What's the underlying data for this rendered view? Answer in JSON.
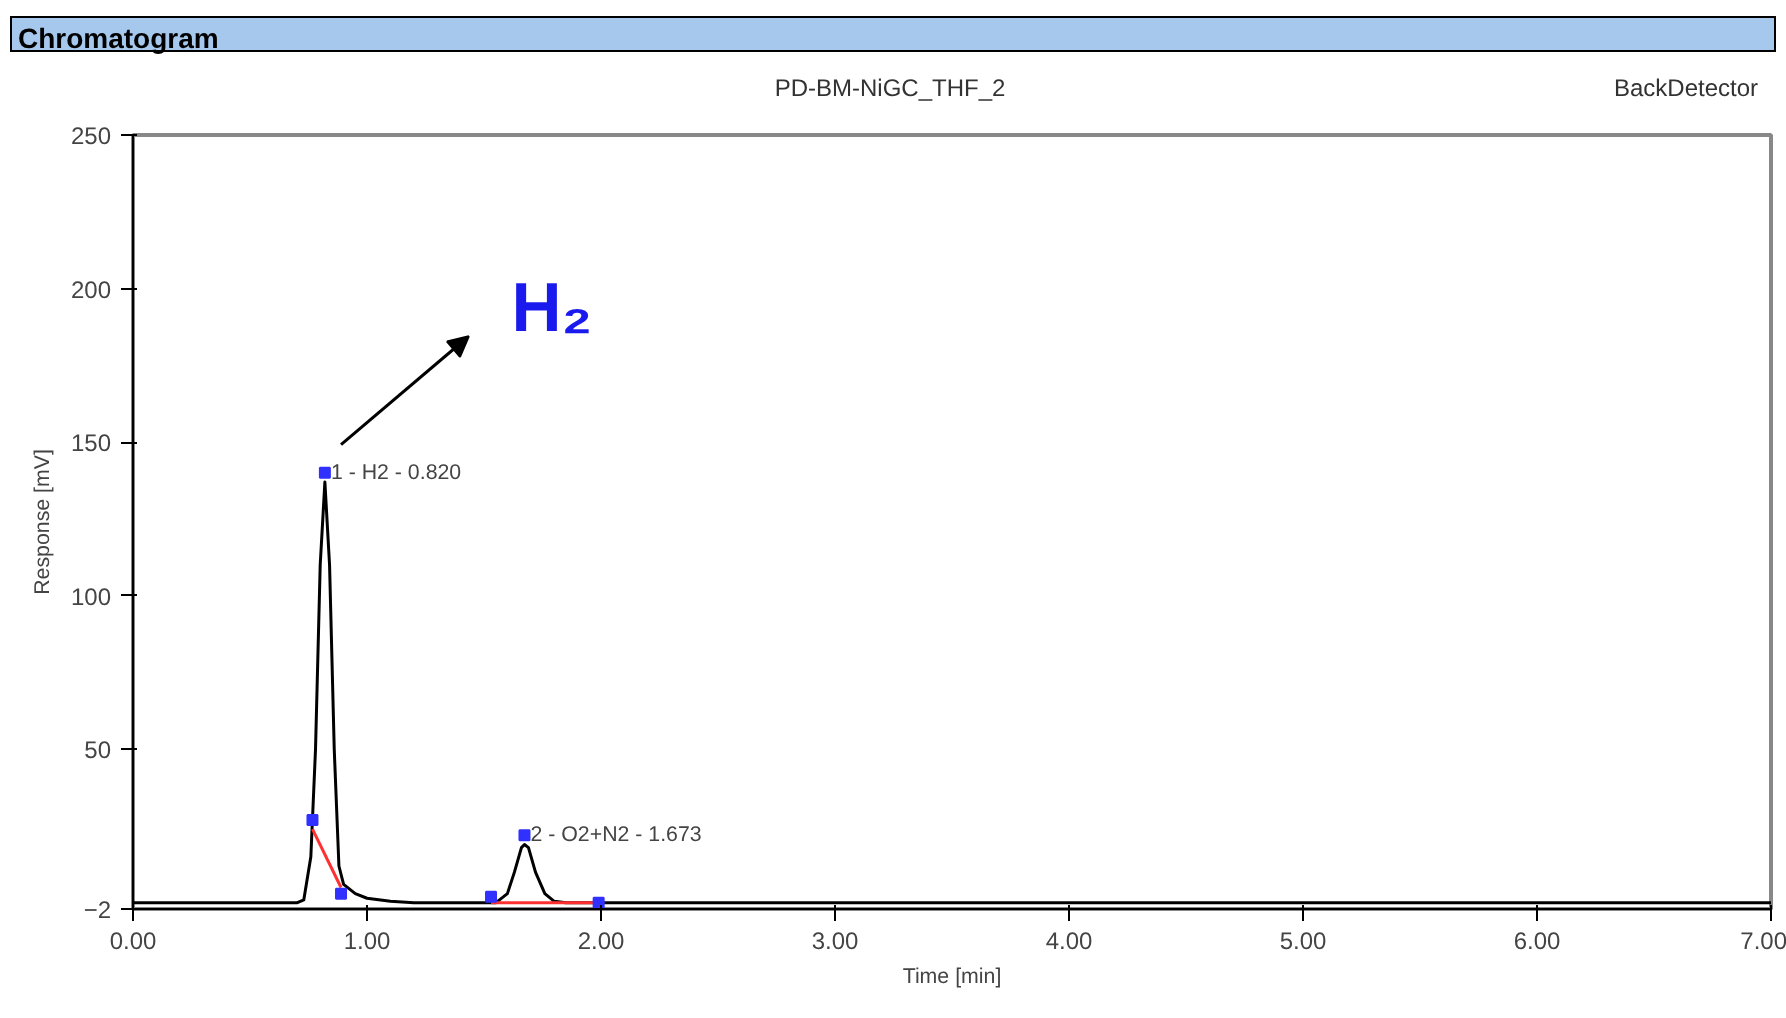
{
  "chart_data": {
    "type": "line",
    "title": "Chromatogram",
    "subtitle": "PD-BM-NiGC_THF_2",
    "xlabel": "Time [min]",
    "ylabel": "Response [mV]",
    "xlim": [
      0,
      7
    ],
    "ylim": [
      -2,
      250
    ],
    "xticks": [
      {
        "value": 0,
        "label": "0.00"
      },
      {
        "value": 1,
        "label": "1.00"
      },
      {
        "value": 2,
        "label": "2.00"
      },
      {
        "value": 3,
        "label": "3.00"
      },
      {
        "value": 4,
        "label": "4.00"
      },
      {
        "value": 5,
        "label": "5.00"
      },
      {
        "value": 6,
        "label": "6.00"
      },
      {
        "value": 7,
        "label": "7.00"
      }
    ],
    "yticks": [
      -2,
      50,
      100,
      150,
      200,
      250
    ],
    "grid": false,
    "series": [
      {
        "color": "#000000",
        "x": [
          0,
          0.7,
          0.73,
          0.76,
          0.78,
          0.8,
          0.82,
          0.84,
          0.86,
          0.88,
          0.9,
          0.95,
          1.0,
          1.1,
          1.2,
          1.55,
          1.6,
          1.63,
          1.66,
          1.673,
          1.69,
          1.72,
          1.76,
          1.8,
          1.85,
          7.0
        ],
        "values": [
          0,
          0,
          1,
          15,
          50,
          110,
          137,
          110,
          50,
          12,
          6,
          3,
          1.5,
          0.5,
          0,
          0,
          3,
          10,
          18,
          19,
          18,
          10,
          3,
          0.5,
          0,
          0
        ]
      },
      {
        "color": "#ff3030",
        "x": [
          0.767,
          0.889
        ],
        "values": [
          24,
          5
        ]
      },
      {
        "color": "#ff3030",
        "x": [
          1.53,
          1.99
        ],
        "values": [
          0,
          0
        ]
      },
      {
        "type": "scatter",
        "color": "#3030ff",
        "x": [
          0.767,
          0.82,
          0.889,
          1.53,
          1.673,
          1.99
        ],
        "values": [
          27,
          140,
          3,
          2,
          22,
          0
        ]
      }
    ],
    "annotations": [
      {
        "text": "1 - H2 - 0.820",
        "x": 0.82,
        "y": 140
      },
      {
        "text": "2 - O2+N2 - 1.673",
        "x": 1.673,
        "y": 22
      },
      "BackDetector",
      "H₂"
    ]
  }
}
